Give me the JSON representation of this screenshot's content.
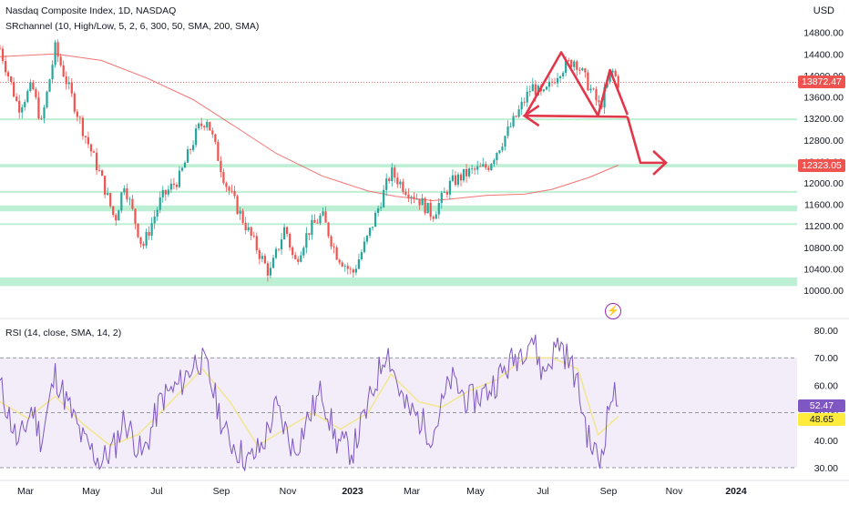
{
  "header": {
    "title": "Nasdaq Composite Index, 1D, NASDAQ",
    "indicator": "SRchannel (10, High/Low, 5, 2, 6, 300, 50, SMA, 200, SMA)",
    "currency": "USD"
  },
  "rsi_panel": {
    "title": "RSI (14, close, SMA, 14, 2)",
    "rsi_value": "52.47",
    "rsi_sma_value": "48.65"
  },
  "price_tags": {
    "last_price": "13872.47",
    "level_price": "12323.05"
  },
  "colors": {
    "up": "#26a69a",
    "down": "#ef5350",
    "sr_zone": "#a5e9c4",
    "sma200": "#ef5350",
    "annotation": "#e2374a",
    "rsi_line": "#7e57c2",
    "rsi_sma": "#f2e58a",
    "rsi_band": "#ede7f6",
    "last_tag": "#ef5350",
    "level_tag": "#ef5350",
    "rsi_tag": "#7e57c2",
    "rsi_sma_tag": "#ffeb3b"
  },
  "chart_data": [
    {
      "type": "candlestick",
      "title": "Nasdaq Composite Index, 1D, NASDAQ",
      "x_ticks": [
        "Mar",
        "May",
        "Jul",
        "Sep",
        "Nov",
        "2023",
        "Mar",
        "May",
        "Jul",
        "Sep",
        "Nov",
        "2024"
      ],
      "y_ticks": [
        "14800.00",
        "14400.00",
        "14000.00",
        "13600.00",
        "13200.00",
        "12800.00",
        "12400.00",
        "12000.00",
        "11600.00",
        "11200.00",
        "10800.00",
        "10400.00",
        "10000.00"
      ],
      "ylim": [
        9900,
        15150
      ],
      "grid": false,
      "series_path": [
        {
          "t": 0,
          "v": 14500
        },
        {
          "t": 20,
          "v": 13400
        },
        {
          "t": 35,
          "v": 13800
        },
        {
          "t": 45,
          "v": 13100
        },
        {
          "t": 60,
          "v": 14500
        },
        {
          "t": 70,
          "v": 14000
        },
        {
          "t": 90,
          "v": 13000
        },
        {
          "t": 110,
          "v": 12100
        },
        {
          "t": 125,
          "v": 11300
        },
        {
          "t": 135,
          "v": 12000
        },
        {
          "t": 155,
          "v": 10800
        },
        {
          "t": 175,
          "v": 11700
        },
        {
          "t": 195,
          "v": 12100
        },
        {
          "t": 215,
          "v": 13000
        },
        {
          "t": 225,
          "v": 13200
        },
        {
          "t": 245,
          "v": 12000
        },
        {
          "t": 270,
          "v": 11100
        },
        {
          "t": 293,
          "v": 10300
        },
        {
          "t": 310,
          "v": 11200
        },
        {
          "t": 320,
          "v": 10500
        },
        {
          "t": 335,
          "v": 11100
        },
        {
          "t": 350,
          "v": 11400
        },
        {
          "t": 365,
          "v": 10700
        },
        {
          "t": 383,
          "v": 10300
        },
        {
          "t": 400,
          "v": 11000
        },
        {
          "t": 425,
          "v": 12200
        },
        {
          "t": 440,
          "v": 11900
        },
        {
          "t": 455,
          "v": 11700
        },
        {
          "t": 470,
          "v": 11400
        },
        {
          "t": 490,
          "v": 12000
        },
        {
          "t": 510,
          "v": 12200
        },
        {
          "t": 530,
          "v": 12300
        },
        {
          "t": 560,
          "v": 13200
        },
        {
          "t": 578,
          "v": 13800
        },
        {
          "t": 590,
          "v": 13600
        },
        {
          "t": 608,
          "v": 14100
        },
        {
          "t": 625,
          "v": 14300
        },
        {
          "t": 652,
          "v": 13400
        },
        {
          "t": 665,
          "v": 14100
        },
        {
          "t": 672,
          "v": 13870
        }
      ],
      "sma200": [
        {
          "t": 0,
          "v": 14350
        },
        {
          "t": 60,
          "v": 14400
        },
        {
          "t": 110,
          "v": 14280
        },
        {
          "t": 160,
          "v": 13950
        },
        {
          "t": 210,
          "v": 13550
        },
        {
          "t": 260,
          "v": 13000
        },
        {
          "t": 300,
          "v": 12550
        },
        {
          "t": 350,
          "v": 12130
        },
        {
          "t": 400,
          "v": 11850
        },
        {
          "t": 430,
          "v": 11750
        },
        {
          "t": 470,
          "v": 11670
        },
        {
          "t": 490,
          "v": 11700
        },
        {
          "t": 530,
          "v": 11770
        },
        {
          "t": 570,
          "v": 11790
        },
        {
          "t": 600,
          "v": 11880
        },
        {
          "t": 640,
          "v": 12100
        },
        {
          "t": 672,
          "v": 12330
        }
      ],
      "sr_zones": [
        {
          "low": 13170,
          "high": 13200
        },
        {
          "low": 12290,
          "high": 12350
        },
        {
          "low": 11820,
          "high": 11850
        },
        {
          "low": 11470,
          "high": 11580
        },
        {
          "low": 11220,
          "high": 11250
        },
        {
          "low": 10080,
          "high": 10240
        }
      ],
      "last_price": 13872.47,
      "annotations": {
        "head_and_shoulders": [
          {
            "t": 570,
            "v": 13230
          },
          {
            "t": 610,
            "v": 14430
          },
          {
            "t": 650,
            "v": 13250
          },
          {
            "t": 663,
            "v": 14100
          },
          {
            "t": 682,
            "v": 13270
          }
        ],
        "neckline": [
          {
            "t": 570,
            "v": 13250
          },
          {
            "t": 682,
            "v": 13230
          }
        ],
        "projection": [
          {
            "t": 682,
            "v": 13230
          },
          {
            "t": 708,
            "v": 12290
          }
        ]
      }
    },
    {
      "type": "line",
      "title": "RSI (14, close, SMA, 14, 2)",
      "y_ticks": [
        "80.00",
        "70.00",
        "60.00",
        "50.00",
        "40.00",
        "30.00"
      ],
      "ylim": [
        28,
        82
      ],
      "bands": [
        30,
        50,
        70
      ],
      "series": [
        {
          "name": "RSI",
          "value": 52.47,
          "path": [
            {
              "t": 0,
              "v": 60
            },
            {
              "t": 20,
              "v": 38
            },
            {
              "t": 35,
              "v": 52
            },
            {
              "t": 45,
              "v": 40
            },
            {
              "t": 60,
              "v": 64
            },
            {
              "t": 70,
              "v": 56
            },
            {
              "t": 90,
              "v": 40
            },
            {
              "t": 110,
              "v": 32
            },
            {
              "t": 125,
              "v": 38
            },
            {
              "t": 135,
              "v": 48
            },
            {
              "t": 155,
              "v": 34
            },
            {
              "t": 175,
              "v": 55
            },
            {
              "t": 195,
              "v": 60
            },
            {
              "t": 215,
              "v": 70
            },
            {
              "t": 225,
              "v": 66
            },
            {
              "t": 245,
              "v": 42
            },
            {
              "t": 270,
              "v": 32
            },
            {
              "t": 285,
              "v": 38
            },
            {
              "t": 300,
              "v": 52
            },
            {
              "t": 320,
              "v": 36
            },
            {
              "t": 335,
              "v": 48
            },
            {
              "t": 350,
              "v": 58
            },
            {
              "t": 365,
              "v": 40
            },
            {
              "t": 383,
              "v": 36
            },
            {
              "t": 400,
              "v": 52
            },
            {
              "t": 420,
              "v": 74
            },
            {
              "t": 440,
              "v": 52
            },
            {
              "t": 455,
              "v": 48
            },
            {
              "t": 470,
              "v": 42
            },
            {
              "t": 490,
              "v": 62
            },
            {
              "t": 510,
              "v": 54
            },
            {
              "t": 530,
              "v": 58
            },
            {
              "t": 560,
              "v": 70
            },
            {
              "t": 578,
              "v": 78
            },
            {
              "t": 590,
              "v": 64
            },
            {
              "t": 608,
              "v": 76
            },
            {
              "t": 625,
              "v": 64
            },
            {
              "t": 640,
              "v": 40
            },
            {
              "t": 652,
              "v": 32
            },
            {
              "t": 665,
              "v": 58
            },
            {
              "t": 672,
              "v": 52.47
            }
          ]
        },
        {
          "name": "RSI-based MA",
          "value": 48.65,
          "path": [
            {
              "t": 0,
              "v": 54
            },
            {
              "t": 30,
              "v": 48
            },
            {
              "t": 60,
              "v": 56
            },
            {
              "t": 90,
              "v": 46
            },
            {
              "t": 120,
              "v": 38
            },
            {
              "t": 150,
              "v": 42
            },
            {
              "t": 180,
              "v": 52
            },
            {
              "t": 220,
              "v": 66
            },
            {
              "t": 250,
              "v": 54
            },
            {
              "t": 280,
              "v": 38
            },
            {
              "t": 310,
              "v": 44
            },
            {
              "t": 340,
              "v": 50
            },
            {
              "t": 370,
              "v": 44
            },
            {
              "t": 400,
              "v": 50
            },
            {
              "t": 425,
              "v": 64
            },
            {
              "t": 455,
              "v": 54
            },
            {
              "t": 480,
              "v": 52
            },
            {
              "t": 510,
              "v": 58
            },
            {
              "t": 540,
              "v": 62
            },
            {
              "t": 570,
              "v": 70
            },
            {
              "t": 600,
              "v": 70
            },
            {
              "t": 628,
              "v": 66
            },
            {
              "t": 650,
              "v": 42
            },
            {
              "t": 672,
              "v": 48.65
            }
          ]
        }
      ]
    }
  ]
}
